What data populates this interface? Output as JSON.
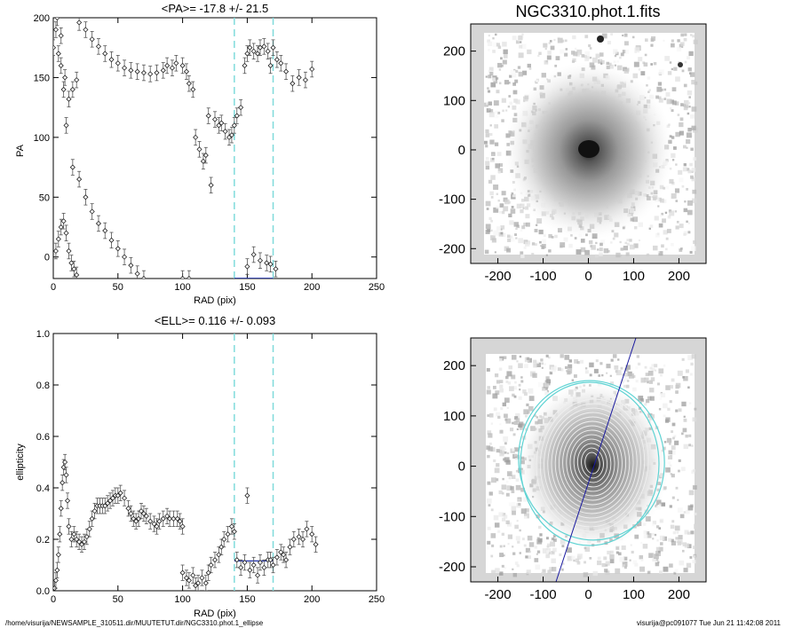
{
  "chart_data": [
    {
      "type": "scatter",
      "title": "<PA>= -17.8 +/-  21.5",
      "xlabel": "RAD (pix)",
      "ylabel": "PA",
      "xlim": [
        0,
        250
      ],
      "ylim": [
        -18,
        200
      ],
      "xticks": [
        0,
        50,
        100,
        150,
        200,
        250
      ],
      "yticks": [
        0,
        50,
        100,
        150,
        200
      ],
      "grid": false,
      "vlines": [
        140,
        170
      ],
      "mean_segment": {
        "x": [
          140,
          170
        ],
        "y": -17.8
      },
      "series": [
        {
          "points": [
            [
              3,
              200
            ],
            [
              6,
              185
            ],
            [
              9,
              150
            ],
            [
              12,
              132
            ],
            [
              15,
              140
            ],
            [
              18,
              148
            ],
            [
              20,
              196
            ],
            [
              25,
              190
            ],
            [
              30,
              182
            ],
            [
              35,
              176
            ],
            [
              40,
              170
            ],
            [
              45,
              165
            ],
            [
              50,
              162
            ],
            [
              55,
              158
            ],
            [
              60,
              156
            ],
            [
              65,
              155
            ],
            [
              70,
              154
            ],
            [
              75,
              153
            ],
            [
              80,
              154
            ],
            [
              85,
              156
            ],
            [
              88,
              160
            ],
            [
              92,
              158
            ],
            [
              95,
              162
            ]
          ]
        },
        {
          "points": [
            [
              0,
              175
            ],
            [
              2,
              190
            ],
            [
              4,
              170
            ],
            [
              6,
              160
            ],
            [
              8,
              140
            ],
            [
              10,
              110
            ]
          ]
        },
        {
          "points": [
            [
              15,
              75
            ],
            [
              20,
              65
            ],
            [
              25,
              50
            ],
            [
              30,
              38
            ],
            [
              35,
              28
            ],
            [
              40,
              22
            ],
            [
              45,
              14
            ],
            [
              50,
              7
            ],
            [
              55,
              0
            ],
            [
              60,
              -7
            ],
            [
              65,
              -14
            ],
            [
              70,
              -18
            ]
          ]
        },
        {
          "points": [
            [
              2,
              5
            ],
            [
              4,
              15
            ],
            [
              6,
              25
            ],
            [
              8,
              30
            ],
            [
              10,
              20
            ],
            [
              12,
              5
            ],
            [
              14,
              -5
            ],
            [
              16,
              -10
            ],
            [
              18,
              -15
            ]
          ]
        },
        {
          "points": [
            [
              100,
              160
            ],
            [
              103,
              155
            ],
            [
              105,
              145
            ],
            [
              108,
              140
            ],
            [
              110,
              100
            ],
            [
              113,
              90
            ],
            [
              116,
              80
            ],
            [
              118,
              85
            ],
            [
              120,
              118
            ],
            [
              122,
              60
            ],
            [
              125,
              115
            ],
            [
              128,
              110
            ],
            [
              130,
              112
            ],
            [
              133,
              105
            ],
            [
              136,
              100
            ],
            [
              138,
              102
            ],
            [
              140,
              110
            ],
            [
              142,
              118
            ],
            [
              145,
              125
            ],
            [
              148,
              160
            ],
            [
              150,
              170
            ],
            [
              152,
              175
            ],
            [
              155,
              172
            ],
            [
              158,
              170
            ],
            [
              160,
              175
            ],
            [
              163,
              176
            ],
            [
              166,
              172
            ],
            [
              168,
              160
            ],
            [
              170,
              175
            ],
            [
              173,
              165
            ],
            [
              176,
              162
            ],
            [
              180,
              155
            ],
            [
              185,
              145
            ],
            [
              190,
              150
            ],
            [
              195,
              148
            ],
            [
              200,
              157
            ]
          ]
        },
        {
          "points": [
            [
              100,
              -18
            ],
            [
              105,
              -18
            ],
            [
              150,
              -8
            ],
            [
              155,
              2
            ],
            [
              160,
              -3
            ],
            [
              165,
              -5
            ],
            [
              168,
              -6
            ],
            [
              172,
              -10
            ]
          ]
        }
      ]
    },
    {
      "type": "scatter",
      "title": "<ELL>= 0.116 +/-  0.093",
      "xlabel": "RAD (pix)",
      "ylabel": "ellipticity",
      "xlim": [
        0,
        250
      ],
      "ylim": [
        0.0,
        1.0
      ],
      "xticks": [
        0,
        50,
        100,
        150,
        200,
        250
      ],
      "yticks": [
        0.0,
        0.2,
        0.4,
        0.6,
        0.8,
        1.0
      ],
      "grid": false,
      "vlines": [
        140,
        170
      ],
      "mean_segment": {
        "x": [
          140,
          170
        ],
        "y": 0.116
      },
      "series": [
        {
          "points": [
            [
              1,
              0.01
            ],
            [
              2,
              0.04
            ],
            [
              3,
              0.08
            ],
            [
              4,
              0.14
            ],
            [
              5,
              0.22
            ],
            [
              6,
              0.32
            ],
            [
              7,
              0.42
            ],
            [
              8,
              0.48
            ],
            [
              9,
              0.5
            ],
            [
              10,
              0.45
            ],
            [
              11,
              0.35
            ],
            [
              12,
              0.25
            ],
            [
              14,
              0.2
            ],
            [
              16,
              0.22
            ],
            [
              18,
              0.2
            ],
            [
              20,
              0.19
            ],
            [
              22,
              0.18
            ],
            [
              24,
              0.19
            ],
            [
              26,
              0.21
            ],
            [
              28,
              0.24
            ],
            [
              30,
              0.28
            ],
            [
              32,
              0.31
            ],
            [
              34,
              0.33
            ],
            [
              36,
              0.33
            ],
            [
              38,
              0.33
            ],
            [
              40,
              0.33
            ],
            [
              42,
              0.34
            ],
            [
              44,
              0.35
            ],
            [
              46,
              0.36
            ],
            [
              48,
              0.37
            ],
            [
              50,
              0.37
            ],
            [
              52,
              0.38
            ],
            [
              55,
              0.36
            ],
            [
              58,
              0.32
            ],
            [
              60,
              0.3
            ],
            [
              62,
              0.28
            ],
            [
              64,
              0.27
            ],
            [
              66,
              0.28
            ],
            [
              68,
              0.31
            ],
            [
              70,
              0.3
            ],
            [
              72,
              0.29
            ],
            [
              75,
              0.27
            ],
            [
              78,
              0.26
            ],
            [
              80,
              0.25
            ],
            [
              82,
              0.27
            ],
            [
              85,
              0.28
            ],
            [
              88,
              0.29
            ],
            [
              90,
              0.28
            ],
            [
              93,
              0.28
            ],
            [
              96,
              0.28
            ],
            [
              98,
              0.27
            ],
            [
              100,
              0.25
            ]
          ]
        },
        {
          "points": [
            [
              100,
              0.07
            ],
            [
              103,
              0.05
            ],
            [
              105,
              0.04
            ],
            [
              108,
              0.06
            ],
            [
              110,
              0.02
            ],
            [
              112,
              0.03
            ],
            [
              115,
              0.05
            ],
            [
              118,
              0.03
            ],
            [
              120,
              0.07
            ],
            [
              122,
              0.1
            ],
            [
              125,
              0.12
            ],
            [
              128,
              0.14
            ],
            [
              130,
              0.17
            ],
            [
              132,
              0.2
            ],
            [
              135,
              0.22
            ],
            [
              138,
              0.25
            ],
            [
              140,
              0.23
            ],
            [
              142,
              0.12
            ],
            [
              145,
              0.09
            ],
            [
              148,
              0.11
            ],
            [
              150,
              0.37
            ],
            [
              152,
              0.08
            ],
            [
              155,
              0.1
            ],
            [
              158,
              0.06
            ],
            [
              160,
              0.11
            ],
            [
              163,
              0.09
            ],
            [
              166,
              0.12
            ],
            [
              168,
              0.12
            ],
            [
              170,
              0.1
            ],
            [
              173,
              0.13
            ],
            [
              176,
              0.15
            ],
            [
              178,
              0.14
            ],
            [
              180,
              0.12
            ],
            [
              183,
              0.17
            ],
            [
              186,
              0.2
            ],
            [
              190,
              0.21
            ],
            [
              193,
              0.2
            ],
            [
              196,
              0.24
            ],
            [
              200,
              0.22
            ],
            [
              203,
              0.18
            ]
          ]
        }
      ]
    },
    {
      "type": "heatmap",
      "title": "NGC3310.phot.1.fits",
      "xlim": [
        -260,
        260
      ],
      "ylim": [
        -230,
        255
      ],
      "xticks": [
        -200,
        -100,
        0,
        100,
        200
      ],
      "yticks": [
        -200,
        -100,
        0,
        100,
        200
      ],
      "colormap": "grayscale"
    },
    {
      "type": "heatmap",
      "title": "",
      "xlim": [
        -260,
        260
      ],
      "ylim": [
        -230,
        255
      ],
      "xticks": [
        -200,
        -100,
        0,
        100,
        200
      ],
      "yticks": [
        -200,
        -100,
        0,
        100,
        200
      ],
      "colormap": "grayscale",
      "overlay": "isophote ellipses with position-angle line"
    }
  ],
  "footer": {
    "path": "/home/visurija/NEWSAMPLE_310511.dir/MUUTETUT.dir/NGC3310.phot.1_ellipse",
    "stamp": "visurija@pc091077  Tue Jun 21 11:42:08 2011"
  },
  "colors": {
    "vline": "#7fdbdb",
    "mean_line": "#2233aa",
    "blue_markers": "#3344bb",
    "ellipse": "#5fd3d3",
    "pa_line": "#1a1aa0"
  }
}
